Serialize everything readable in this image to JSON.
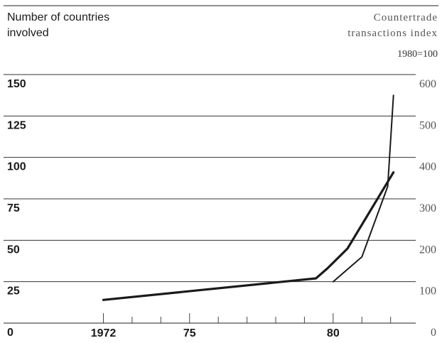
{
  "chart_data": {
    "type": "line",
    "left_axis_label": [
      "Number of countries",
      "involved"
    ],
    "right_axis_label": [
      "Countertrade",
      "transactions index"
    ],
    "right_axis_base": "1980=100",
    "x_ticks": [
      {
        "value": 1972,
        "label": "1972"
      },
      {
        "value": 1975,
        "label": "75"
      },
      {
        "value": 1980,
        "label": "80"
      }
    ],
    "left_ticks": [
      {
        "value": 0,
        "label": "0"
      },
      {
        "value": 25,
        "label": "25"
      },
      {
        "value": 50,
        "label": "50"
      },
      {
        "value": 75,
        "label": "75"
      },
      {
        "value": 100,
        "label": "100"
      },
      {
        "value": 125,
        "label": "125"
      },
      {
        "value": 150,
        "label": "150"
      }
    ],
    "right_ticks": [
      {
        "value": 0,
        "label": "0"
      },
      {
        "value": 100,
        "label": "100"
      },
      {
        "value": 200,
        "label": "200"
      },
      {
        "value": 300,
        "label": "300"
      },
      {
        "value": 400,
        "label": "400"
      },
      {
        "value": 500,
        "label": "500"
      },
      {
        "value": 600,
        "label": "600"
      }
    ],
    "xlim": [
      1968.4,
      1982.8
    ],
    "ylim_left": [
      0,
      150
    ],
    "ylim_right": [
      0,
      600
    ],
    "series": [
      {
        "axis": "left",
        "stroke": "thick",
        "color": "#1a1a1a",
        "x": [
          1972,
          1979.4,
          1979.8,
          1980.5,
          1982.1
        ],
        "y": [
          14,
          27,
          33,
          45,
          91
        ]
      },
      {
        "axis": "right",
        "stroke": "thin",
        "color": "#1a1a1a",
        "x": [
          1980,
          1981,
          1981.9,
          1982.1
        ],
        "y": [
          100,
          160,
          330,
          550
        ]
      }
    ]
  }
}
